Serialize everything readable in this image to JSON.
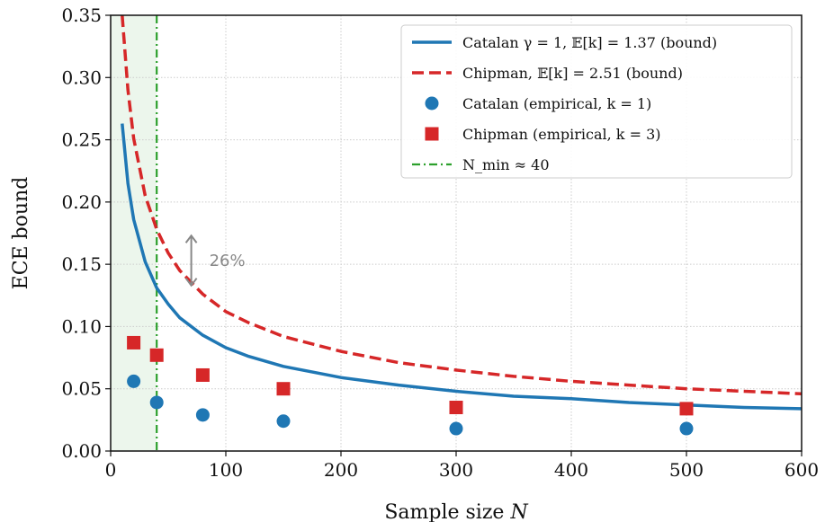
{
  "chart_data": {
    "type": "line",
    "xlabel": "Sample size N",
    "ylabel": "ECE bound",
    "xlim": [
      0,
      600
    ],
    "ylim": [
      0,
      0.35
    ],
    "x_ticks": [
      "0",
      "100",
      "200",
      "300",
      "400",
      "500",
      "600"
    ],
    "y_ticks": [
      "0.00",
      "0.05",
      "0.10",
      "0.15",
      "0.20",
      "0.25",
      "0.30",
      "0.35"
    ],
    "grid": true,
    "legend_position": "top-right",
    "shaded_region": {
      "x_from": 0,
      "x_to": 40,
      "color": "#2ca02c"
    },
    "series": [
      {
        "name": "Catalan γ = 1, 𝔼[k] = 1.37 (bound)",
        "kind": "line",
        "style": "solid",
        "color": "#1f77b4",
        "x": [
          10,
          15,
          20,
          30,
          40,
          50,
          60,
          80,
          100,
          120,
          150,
          200,
          250,
          300,
          350,
          400,
          450,
          500,
          550,
          600
        ],
        "y": [
          0.263,
          0.215,
          0.186,
          0.152,
          0.131,
          0.118,
          0.107,
          0.093,
          0.083,
          0.076,
          0.068,
          0.059,
          0.053,
          0.048,
          0.044,
          0.042,
          0.039,
          0.037,
          0.035,
          0.034
        ]
      },
      {
        "name": "Chipman, 𝔼[k] = 2.51 (bound)",
        "kind": "line",
        "style": "dashed",
        "color": "#d62728",
        "x": [
          10,
          15,
          20,
          30,
          40,
          50,
          60,
          80,
          100,
          120,
          150,
          200,
          250,
          300,
          350,
          400,
          450,
          500,
          550,
          600
        ],
        "y": [
          0.356,
          0.29,
          0.251,
          0.205,
          0.178,
          0.159,
          0.145,
          0.126,
          0.112,
          0.103,
          0.092,
          0.08,
          0.071,
          0.065,
          0.06,
          0.056,
          0.053,
          0.05,
          0.048,
          0.046
        ]
      },
      {
        "name": "Catalan (empirical, k = 1)",
        "kind": "scatter",
        "marker": "circle",
        "color": "#1f77b4",
        "x": [
          20,
          40,
          80,
          150,
          300,
          500
        ],
        "y": [
          0.056,
          0.039,
          0.029,
          0.024,
          0.018,
          0.018
        ]
      },
      {
        "name": "Chipman (empirical, k = 3)",
        "kind": "scatter",
        "marker": "square",
        "color": "#d62728",
        "x": [
          20,
          40,
          80,
          150,
          300,
          500
        ],
        "y": [
          0.087,
          0.077,
          0.061,
          0.05,
          0.035,
          0.034
        ]
      },
      {
        "name": "N_min ≈ 40",
        "kind": "vline",
        "style": "dashdot",
        "color": "#2ca02c",
        "x": 40
      }
    ],
    "legend": [
      "Catalan γ = 1, 𝔼[k] = 1.37 (bound)",
      "Chipman, 𝔼[k] = 2.51 (bound)",
      "Catalan (empirical, k = 1)",
      "Chipman (empirical, k = 3)",
      "N_min ≈ 40"
    ],
    "annotation": {
      "text": "26%",
      "x": 70,
      "y_from": 0.133,
      "y_to": 0.173,
      "color": "#888888"
    }
  }
}
